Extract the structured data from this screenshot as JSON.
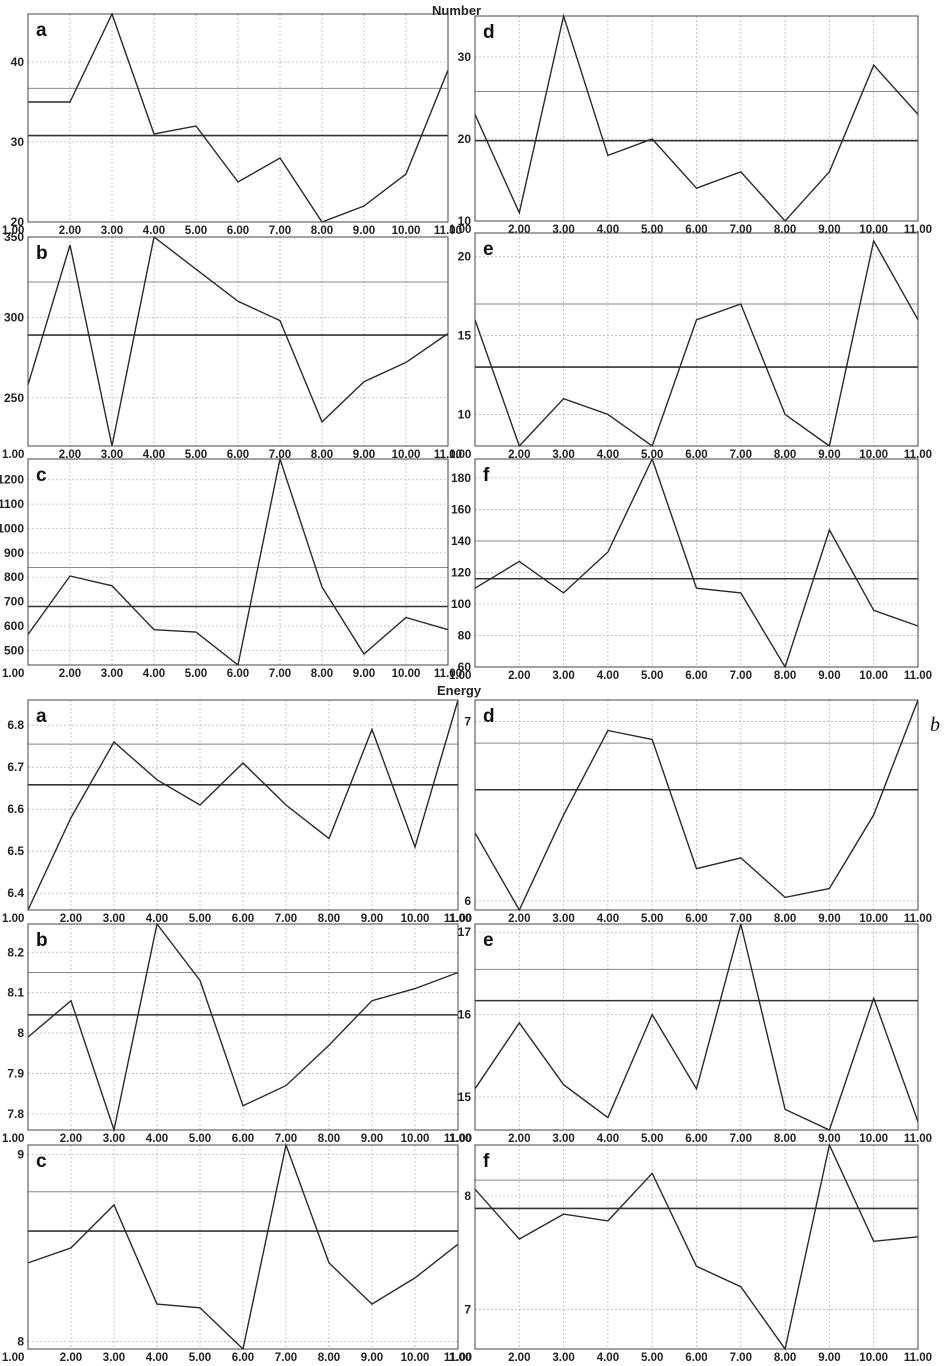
{
  "figure": {
    "sections": [
      {
        "title": "Number"
      },
      {
        "title": "Energy"
      }
    ],
    "side_label": "b"
  },
  "chart_data": [
    {
      "type": "line",
      "section": "Number",
      "label": "a",
      "x": [
        1,
        2,
        3,
        4,
        5,
        6,
        7,
        8,
        9,
        10,
        11
      ],
      "y": [
        35,
        35,
        46,
        31,
        32,
        25,
        28,
        20,
        22,
        26,
        39
      ],
      "xlim": [
        1,
        11
      ],
      "ylim": [
        20,
        46
      ],
      "yticks": [
        20,
        30,
        40
      ],
      "yticklabels": [
        "20",
        "30",
        "40"
      ],
      "hlines": {
        "mean": 30.8,
        "upper": 36.7
      },
      "grid": true
    },
    {
      "type": "line",
      "section": "Number",
      "label": "d",
      "x": [
        1,
        2,
        3,
        4,
        5,
        6,
        7,
        8,
        9,
        10,
        11
      ],
      "y": [
        23,
        11,
        35,
        18,
        20,
        14,
        16,
        10,
        16,
        29,
        23
      ],
      "xlim": [
        1,
        11
      ],
      "ylim": [
        10,
        35
      ],
      "yticks": [
        10,
        20,
        30
      ],
      "yticklabels": [
        "10",
        "20",
        "30"
      ],
      "hlines": {
        "mean": 19.8,
        "upper": 25.8
      },
      "grid": true
    },
    {
      "type": "line",
      "section": "Number",
      "label": "b",
      "x": [
        1,
        2,
        3,
        4,
        5,
        6,
        7,
        8,
        9,
        10,
        11
      ],
      "y": [
        258,
        345,
        220,
        350,
        330,
        310,
        298,
        235,
        260,
        272,
        290
      ],
      "xlim": [
        1,
        11
      ],
      "ylim": [
        220,
        350
      ],
      "yticks": [
        250,
        300,
        350
      ],
      "yticklabels": [
        "250",
        "300",
        "350"
      ],
      "hlines": {
        "mean": 289,
        "upper": 322
      },
      "grid": true
    },
    {
      "type": "line",
      "section": "Number",
      "label": "e",
      "x": [
        1,
        2,
        3,
        4,
        5,
        6,
        7,
        8,
        9,
        10,
        11
      ],
      "y": [
        16,
        8,
        11,
        10,
        8,
        16,
        17,
        10,
        8,
        21,
        16
      ],
      "xlim": [
        1,
        11
      ],
      "ylim": [
        8,
        21.5
      ],
      "yticks": [
        10,
        15,
        20
      ],
      "yticklabels": [
        "10",
        "15",
        "20"
      ],
      "hlines": {
        "mean": 13,
        "upper": 17
      },
      "grid": true
    },
    {
      "type": "line",
      "section": "Number",
      "label": "c",
      "x": [
        1,
        2,
        3,
        4,
        5,
        6,
        7,
        8,
        9,
        10,
        11
      ],
      "y": [
        565,
        805,
        765,
        585,
        575,
        440,
        1285,
        760,
        485,
        635,
        585
      ],
      "xlim": [
        1,
        11
      ],
      "ylim": [
        440,
        1285
      ],
      "yticks": [
        500,
        600,
        700,
        800,
        900,
        1000,
        1100,
        1200
      ],
      "yticklabels": [
        "500",
        "600",
        "700",
        "800",
        "900",
        "1000",
        "1100",
        "1200"
      ],
      "hlines": {
        "mean": 680,
        "upper": 840
      },
      "grid": true
    },
    {
      "type": "line",
      "section": "Number",
      "label": "f",
      "x": [
        1,
        2,
        3,
        4,
        5,
        6,
        7,
        8,
        9,
        10,
        11
      ],
      "y": [
        110,
        127,
        107,
        133,
        192,
        110,
        107,
        60,
        147,
        96,
        86
      ],
      "xlim": [
        1,
        11
      ],
      "ylim": [
        60,
        192
      ],
      "yticks": [
        60,
        80,
        100,
        120,
        140,
        160,
        180
      ],
      "yticklabels": [
        "60",
        "80",
        "100",
        "120",
        "140",
        "160",
        "180"
      ],
      "hlines": {
        "mean": 116,
        "upper": 140
      },
      "grid": true
    },
    {
      "type": "line",
      "section": "Energy",
      "label": "a",
      "x": [
        1,
        2,
        3,
        4,
        5,
        6,
        7,
        8,
        9,
        10,
        11
      ],
      "y": [
        6.36,
        6.58,
        6.76,
        6.67,
        6.61,
        6.71,
        6.61,
        6.53,
        6.79,
        6.51,
        6.86
      ],
      "xlim": [
        1,
        11
      ],
      "ylim": [
        6.36,
        6.86
      ],
      "yticks": [
        6.4,
        6.5,
        6.6,
        6.7,
        6.8
      ],
      "yticklabels": [
        "6.4",
        "6.5",
        "6.6",
        "6.7",
        "6.8"
      ],
      "hlines": {
        "mean": 6.658,
        "upper": 6.755
      },
      "grid": true
    },
    {
      "type": "line",
      "section": "Energy",
      "label": "d",
      "x": [
        1,
        2,
        3,
        4,
        5,
        6,
        7,
        8,
        9,
        10,
        11
      ],
      "y": [
        6.38,
        5.95,
        6.48,
        6.95,
        6.9,
        6.18,
        6.24,
        6.02,
        6.07,
        6.48,
        7.12
      ],
      "xlim": [
        1,
        11
      ],
      "ylim": [
        5.95,
        7.12
      ],
      "yticks": [
        6,
        7
      ],
      "yticklabels": [
        "6",
        "7"
      ],
      "hlines": {
        "mean": 6.62,
        "upper": 6.88
      },
      "grid": true
    },
    {
      "type": "line",
      "section": "Energy",
      "label": "b",
      "x": [
        1,
        2,
        3,
        4,
        5,
        6,
        7,
        8,
        9,
        10,
        11
      ],
      "y": [
        7.99,
        8.08,
        7.76,
        8.27,
        8.13,
        7.82,
        7.87,
        7.97,
        8.08,
        8.11,
        8.15
      ],
      "xlim": [
        1,
        11
      ],
      "ylim": [
        7.76,
        8.27
      ],
      "yticks": [
        7.8,
        7.9,
        8,
        8.1,
        8.2
      ],
      "yticklabels": [
        "7.8",
        "7.9",
        "8",
        "8.1",
        "8.2"
      ],
      "hlines": {
        "mean": 8.045,
        "upper": 8.15
      },
      "grid": true
    },
    {
      "type": "line",
      "section": "Energy",
      "label": "e",
      "x": [
        1,
        2,
        3,
        4,
        5,
        6,
        7,
        8,
        9,
        10,
        11
      ],
      "y": [
        15.1,
        15.9,
        15.15,
        14.75,
        16.0,
        15.1,
        17.1,
        14.85,
        14.6,
        16.2,
        14.7
      ],
      "xlim": [
        1,
        11
      ],
      "ylim": [
        14.6,
        17.1
      ],
      "yticks": [
        15,
        16,
        17
      ],
      "yticklabels": [
        "15",
        "16",
        "17"
      ],
      "hlines": {
        "mean": 16.17,
        "upper": 16.55
      },
      "grid": true
    },
    {
      "type": "line",
      "section": "Energy",
      "label": "c",
      "x": [
        1,
        2,
        3,
        4,
        5,
        6,
        7,
        8,
        9,
        10,
        11
      ],
      "y": [
        8.42,
        8.5,
        8.73,
        8.2,
        8.18,
        7.96,
        9.05,
        8.42,
        8.2,
        8.34,
        8.52
      ],
      "xlim": [
        1,
        11
      ],
      "ylim": [
        7.96,
        9.05
      ],
      "yticks": [
        8,
        9
      ],
      "yticklabels": [
        "8",
        "9"
      ],
      "hlines": {
        "mean": 8.59,
        "upper": 8.8
      },
      "grid": true
    },
    {
      "type": "line",
      "section": "Energy",
      "label": "f",
      "x": [
        1,
        2,
        3,
        4,
        5,
        6,
        7,
        8,
        9,
        10,
        11
      ],
      "y": [
        8.06,
        7.62,
        7.84,
        7.78,
        8.2,
        7.38,
        7.2,
        6.65,
        8.45,
        7.6,
        7.64
      ],
      "xlim": [
        1,
        11
      ],
      "ylim": [
        6.65,
        8.45
      ],
      "yticks": [
        7,
        8
      ],
      "yticklabels": [
        "7",
        "8"
      ],
      "hlines": {
        "mean": 7.89,
        "upper": 8.14
      },
      "grid": true
    }
  ]
}
